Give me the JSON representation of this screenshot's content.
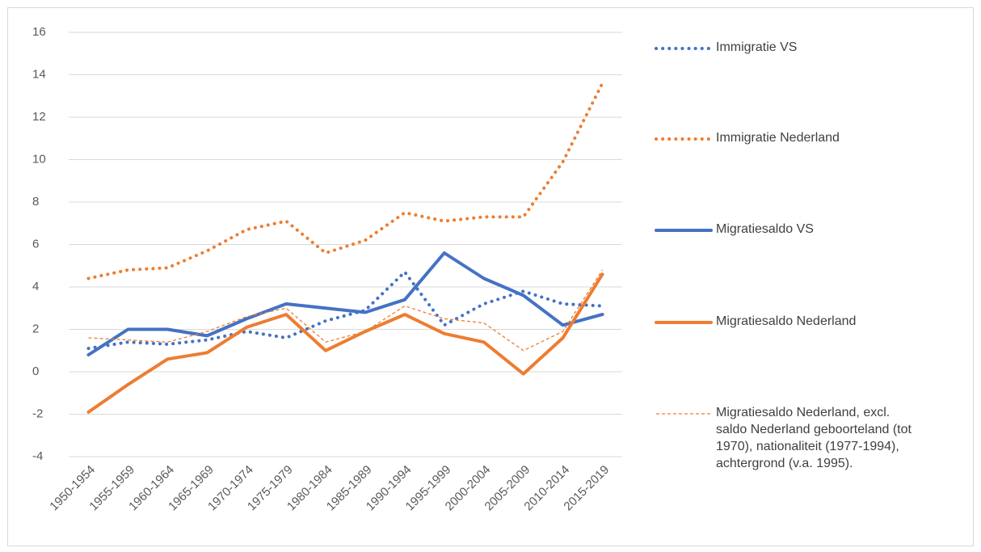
{
  "chart_data": {
    "type": "line",
    "categories": [
      "1950-1954",
      "1955-1959",
      "1960-1964",
      "1965-1969",
      "1970-1974",
      "1975-1979",
      "1980-1984",
      "1985-1989",
      "1990-1994",
      "1995-1999",
      "2000-2004",
      "2005-2009",
      "2010-2014",
      "2015-2019"
    ],
    "series": [
      {
        "name": "Immigratie VS",
        "color": "#4472c4",
        "line_style": "dotted",
        "values": [
          1.1,
          1.4,
          1.3,
          1.5,
          1.9,
          1.6,
          2.4,
          2.9,
          4.7,
          2.2,
          3.2,
          3.8,
          3.2,
          3.1
        ]
      },
      {
        "name": "Immigratie Nederland",
        "color": "#ed7d31",
        "line_style": "dotted",
        "values": [
          4.4,
          4.8,
          4.9,
          5.7,
          6.7,
          7.1,
          5.6,
          6.2,
          7.5,
          7.1,
          7.3,
          7.3,
          9.9,
          13.6
        ]
      },
      {
        "name": "Migratiesaldo VS",
        "color": "#4472c4",
        "line_style": "solid",
        "values": [
          0.8,
          2.0,
          2.0,
          1.7,
          2.5,
          3.2,
          3.0,
          2.8,
          3.4,
          5.6,
          4.4,
          3.6,
          2.2,
          2.7
        ]
      },
      {
        "name": "Migratiesaldo Nederland",
        "color": "#ed7d31",
        "line_style": "solid",
        "values": [
          -1.9,
          -0.6,
          0.6,
          0.9,
          2.1,
          2.7,
          1.0,
          1.9,
          2.7,
          1.8,
          1.4,
          -0.1,
          1.6,
          4.6
        ]
      },
      {
        "name": "Migratiesaldo Nederland, excl. saldo Nederland geboorteland (tot 1970), nationaliteit (1977-1994), achtergrond (v.a. 1995).",
        "color": "#ed7d31",
        "line_style": "dashed",
        "values": [
          1.6,
          1.5,
          1.4,
          1.9,
          2.6,
          3.0,
          1.4,
          1.9,
          3.1,
          2.5,
          2.3,
          1.0,
          1.9,
          4.8
        ]
      }
    ],
    "ylim": [
      -4,
      16
    ],
    "yticks": [
      -4,
      -2,
      0,
      2,
      4,
      6,
      8,
      10,
      12,
      14,
      16
    ],
    "grid": true,
    "legend": "right"
  }
}
